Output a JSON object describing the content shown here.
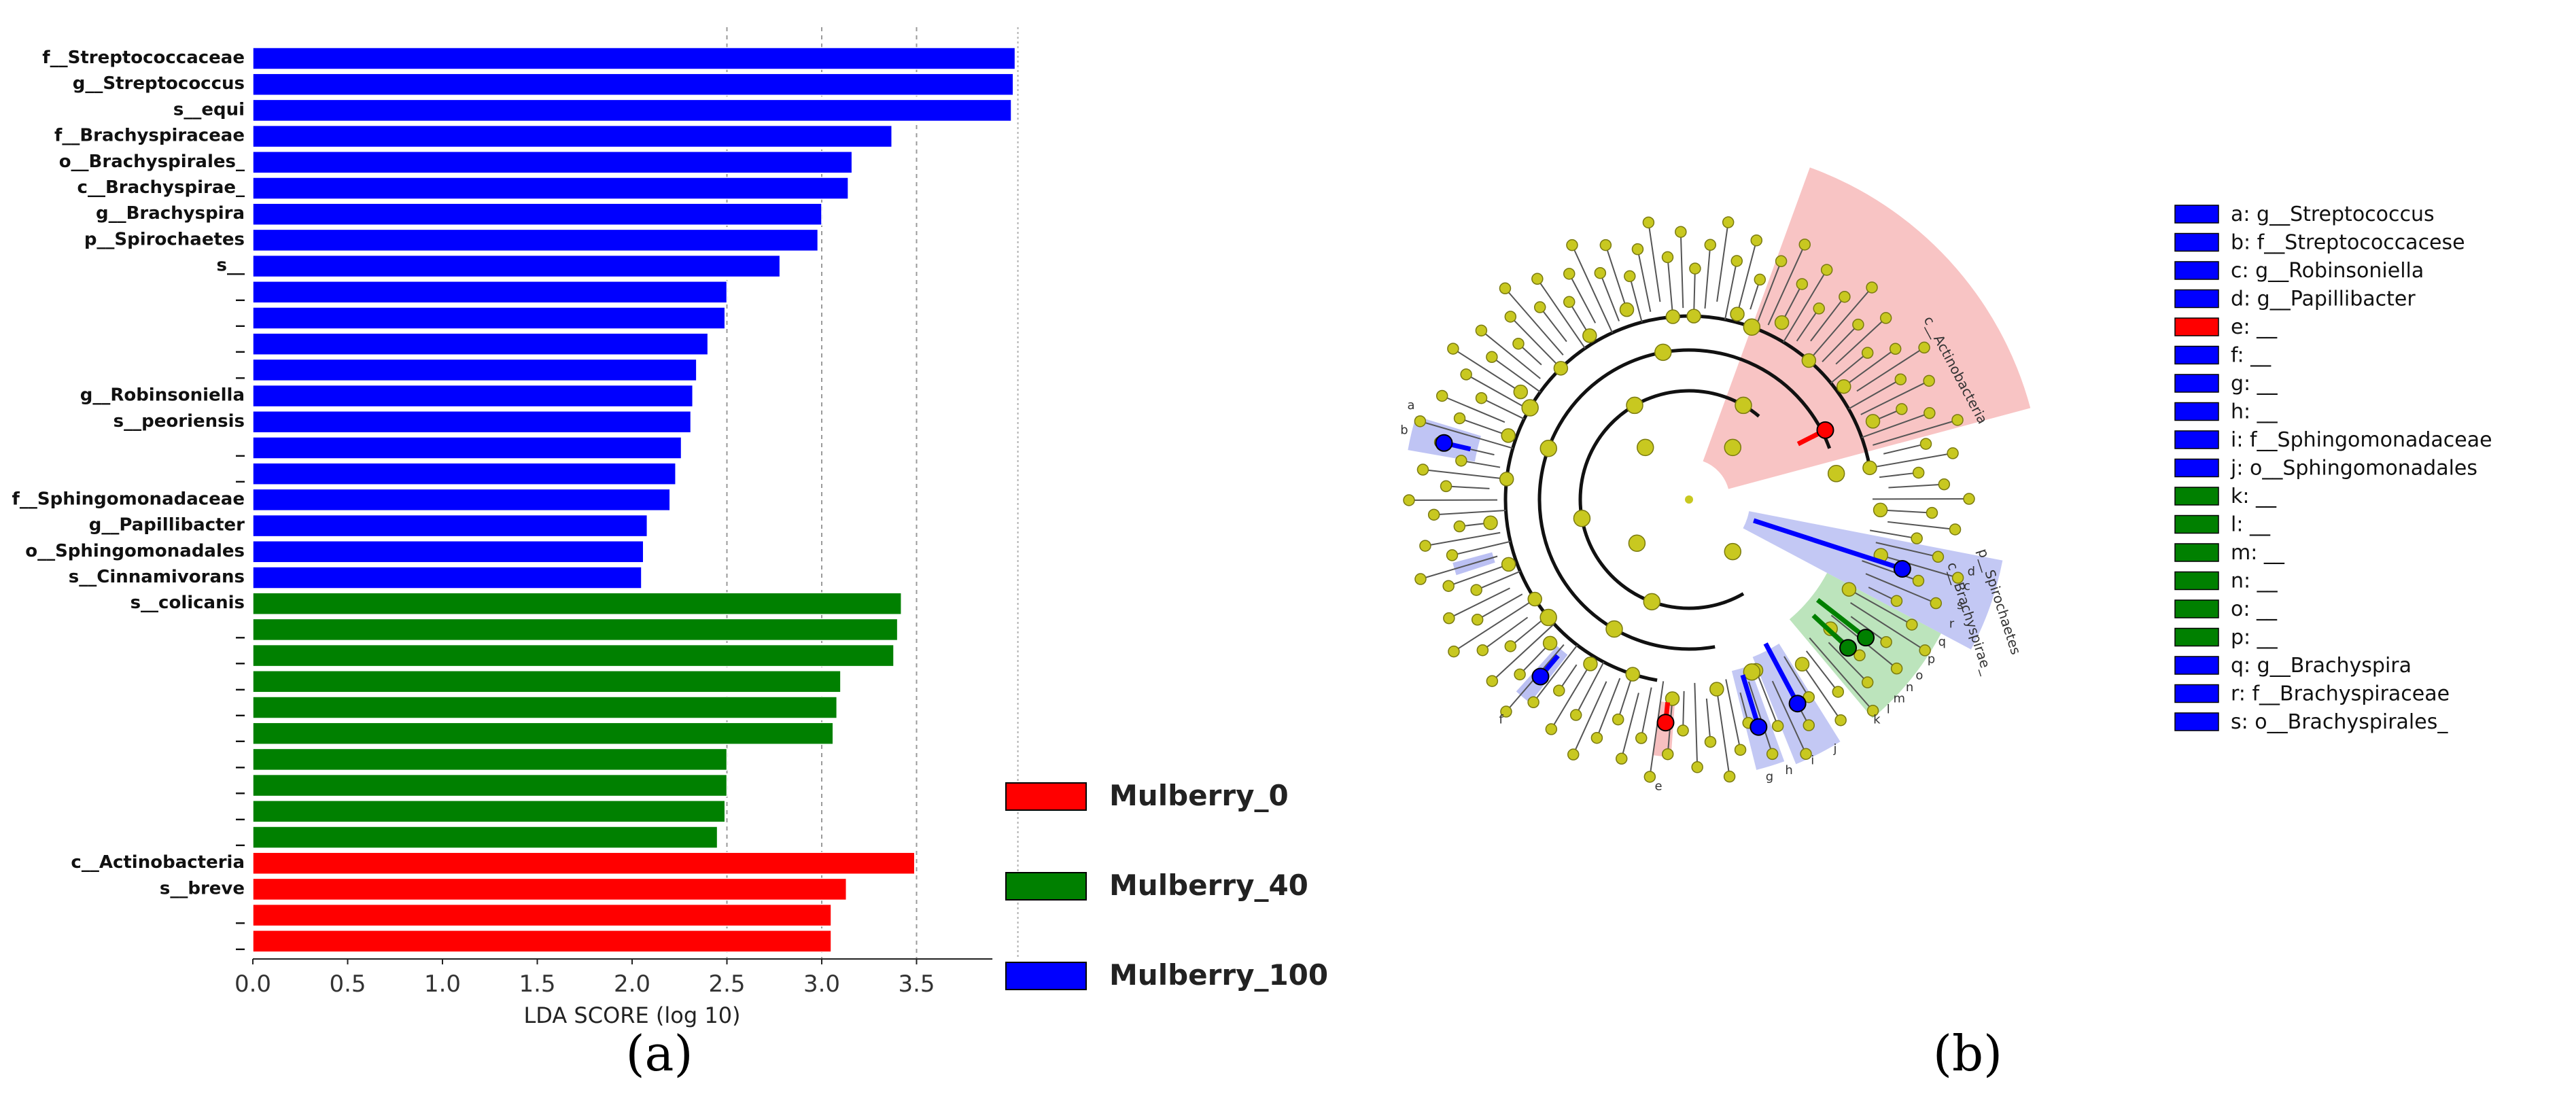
{
  "panels": {
    "a_label": "(a)",
    "b_label": "(b)"
  },
  "colors": {
    "mulberry_0": "#ff0000",
    "mulberry_40": "#008000",
    "mulberry_100": "#0000ff",
    "node": "#c8c820",
    "node_stroke": "#7a7a10"
  },
  "chart_data": [
    {
      "type": "bar",
      "orientation": "horizontal",
      "xlabel": "LDA SCORE (log 10)",
      "xlim": [
        0,
        4
      ],
      "xticks": [
        "0.0",
        "0.5",
        "1.0",
        "1.5",
        "2.0",
        "2.5",
        "3.0",
        "3.5"
      ],
      "grid": "vertical dashed",
      "legend_position": "bottom-right",
      "legend": [
        {
          "name": "Mulberry_0",
          "group": "mulberry_0"
        },
        {
          "name": "Mulberry_40",
          "group": "mulberry_40"
        },
        {
          "name": "Mulberry_100",
          "group": "mulberry_100"
        }
      ],
      "bars": [
        {
          "label": "f__Streptococcaceae",
          "value": 4.02,
          "group": "mulberry_100"
        },
        {
          "label": "g__Streptococcus",
          "value": 4.01,
          "group": "mulberry_100"
        },
        {
          "label": "s__equi",
          "value": 4.0,
          "group": "mulberry_100"
        },
        {
          "label": "f__Brachyspiraceae",
          "value": 3.37,
          "group": "mulberry_100"
        },
        {
          "label": "o__Brachyspirales_",
          "value": 3.16,
          "group": "mulberry_100"
        },
        {
          "label": "c__Brachyspirae_",
          "value": 3.14,
          "group": "mulberry_100"
        },
        {
          "label": "g__Brachyspira",
          "value": 3.0,
          "group": "mulberry_100"
        },
        {
          "label": "p__Spirochaetes",
          "value": 2.98,
          "group": "mulberry_100"
        },
        {
          "label": "s__",
          "value": 2.78,
          "group": "mulberry_100"
        },
        {
          "label": "_",
          "value": 2.5,
          "group": "mulberry_100"
        },
        {
          "label": "_",
          "value": 2.49,
          "group": "mulberry_100"
        },
        {
          "label": "_",
          "value": 2.4,
          "group": "mulberry_100"
        },
        {
          "label": "_",
          "value": 2.34,
          "group": "mulberry_100"
        },
        {
          "label": "g__Robinsoniella",
          "value": 2.32,
          "group": "mulberry_100"
        },
        {
          "label": "s__peoriensis",
          "value": 2.31,
          "group": "mulberry_100"
        },
        {
          "label": "_",
          "value": 2.26,
          "group": "mulberry_100"
        },
        {
          "label": "_",
          "value": 2.23,
          "group": "mulberry_100"
        },
        {
          "label": "f__Sphingomonadaceae",
          "value": 2.2,
          "group": "mulberry_100"
        },
        {
          "label": "g__Papillibacter",
          "value": 2.08,
          "group": "mulberry_100"
        },
        {
          "label": "o__Sphingomonadales",
          "value": 2.06,
          "group": "mulberry_100"
        },
        {
          "label": "s__Cinnamivorans",
          "value": 2.05,
          "group": "mulberry_100"
        },
        {
          "label": "s__colicanis",
          "value": 3.42,
          "group": "mulberry_40"
        },
        {
          "label": "_",
          "value": 3.4,
          "group": "mulberry_40"
        },
        {
          "label": "_",
          "value": 3.38,
          "group": "mulberry_40"
        },
        {
          "label": "_",
          "value": 3.1,
          "group": "mulberry_40"
        },
        {
          "label": "_",
          "value": 3.08,
          "group": "mulberry_40"
        },
        {
          "label": "_",
          "value": 3.06,
          "group": "mulberry_40"
        },
        {
          "label": "_",
          "value": 2.5,
          "group": "mulberry_40"
        },
        {
          "label": "_",
          "value": 2.5,
          "group": "mulberry_40"
        },
        {
          "label": "_",
          "value": 2.49,
          "group": "mulberry_40"
        },
        {
          "label": "_",
          "value": 2.45,
          "group": "mulberry_40"
        },
        {
          "label": "c__Actinobacteria",
          "value": 3.49,
          "group": "mulberry_0"
        },
        {
          "label": "s__breve",
          "value": 3.13,
          "group": "mulberry_0"
        },
        {
          "label": "_",
          "value": 3.05,
          "group": "mulberry_0"
        },
        {
          "label": "_",
          "value": 3.05,
          "group": "mulberry_0"
        }
      ]
    },
    {
      "type": "cladogram",
      "clade_labels": [
        "c__Actinobacteria",
        "p__Spirochaetes",
        "c__Brachyspirae_"
      ],
      "node_letters": [
        "b",
        "a",
        "d",
        "c",
        "s",
        "r",
        "q",
        "p",
        "o",
        "n",
        "m",
        "l",
        "k",
        "j",
        "i",
        "h",
        "g",
        "f",
        "e"
      ],
      "key": [
        {
          "text": "a: g__Streptococcus",
          "group": "mulberry_100"
        },
        {
          "text": "b: f__Streptococcacese",
          "group": "mulberry_100"
        },
        {
          "text": "c: g__Robinsoniella",
          "group": "mulberry_100"
        },
        {
          "text": "d: g__Papillibacter",
          "group": "mulberry_100"
        },
        {
          "text": "e: __",
          "group": "mulberry_0"
        },
        {
          "text": "f: __",
          "group": "mulberry_100"
        },
        {
          "text": "g: __",
          "group": "mulberry_100"
        },
        {
          "text": "h: __",
          "group": "mulberry_100"
        },
        {
          "text": "i: f__Sphingomonadaceae",
          "group": "mulberry_100"
        },
        {
          "text": "j: o__Sphingomonadales",
          "group": "mulberry_100"
        },
        {
          "text": "k: __",
          "group": "mulberry_40"
        },
        {
          "text": "l: __",
          "group": "mulberry_40"
        },
        {
          "text": "m: __",
          "group": "mulberry_40"
        },
        {
          "text": "n: __",
          "group": "mulberry_40"
        },
        {
          "text": "o: __",
          "group": "mulberry_40"
        },
        {
          "text": "p: __",
          "group": "mulberry_40"
        },
        {
          "text": "q: g__Brachyspira",
          "group": "mulberry_100"
        },
        {
          "text": "r: f__Brachyspiraceae",
          "group": "mulberry_100"
        },
        {
          "text": "s: o__Brachyspirales_",
          "group": "mulberry_100"
        }
      ]
    }
  ]
}
